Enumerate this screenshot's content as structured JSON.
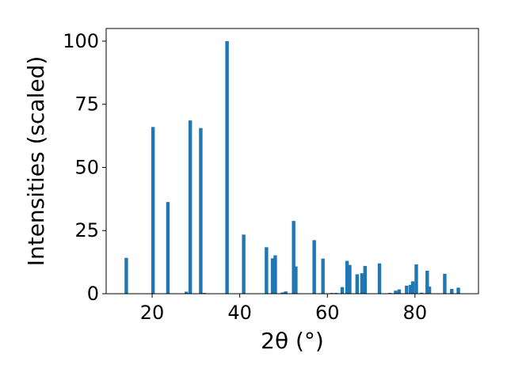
{
  "chart_data": {
    "type": "bar",
    "xlabel": "2θ (°)",
    "ylabel": "Intensities (scaled)",
    "xlim": [
      9.5,
      94.5
    ],
    "ylim": [
      0,
      105
    ],
    "xticks": [
      20,
      40,
      60,
      80
    ],
    "yticks": [
      0,
      25,
      50,
      75,
      100
    ],
    "bar_width": 0.8,
    "color": "#1f77b4",
    "grid": false,
    "x": [
      14.1,
      20.2,
      23.6,
      27.8,
      28.7,
      31.1,
      31.9,
      37.1,
      40.9,
      46.1,
      47.5,
      48.1,
      49.8,
      50.5,
      52.3,
      52.8,
      57.0,
      59.0,
      61.0,
      62.0,
      63.4,
      64.5,
      65.1,
      66.8,
      67.9,
      68.6,
      71.9,
      74.3,
      75.6,
      76.4,
      78.1,
      79.0,
      79.5,
      80.3,
      81.5,
      82.8,
      83.3,
      86.8,
      88.4,
      89.9
    ],
    "values": [
      14.2,
      66.0,
      36.3,
      0.8,
      68.6,
      65.6,
      0.3,
      100.0,
      23.4,
      18.4,
      14.0,
      15.2,
      0.5,
      0.9,
      28.8,
      10.8,
      21.2,
      13.9,
      0.3,
      0.3,
      2.6,
      13.0,
      11.4,
      7.7,
      8.1,
      11.0,
      12.0,
      0.3,
      1.2,
      1.7,
      3.2,
      3.5,
      4.9,
      11.6,
      0.4,
      9.1,
      2.8,
      7.9,
      1.9,
      2.4
    ]
  }
}
